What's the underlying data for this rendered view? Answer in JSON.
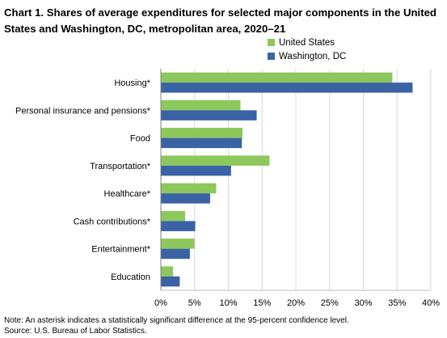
{
  "chart_data": {
    "type": "bar",
    "orientation": "horizontal",
    "title": "Chart 1. Shares of average expenditures for selected major components in the United States and Washington, DC, metropolitan area, 2020–21",
    "categories": [
      "Housing*",
      "Personal insurance and pensions*",
      "Food",
      "Transportation*",
      "Healthcare*",
      "Cash contributions*",
      "Entertainment*",
      "Education"
    ],
    "series": [
      {
        "name": "United States",
        "color": "#8dc85c",
        "values": [
          34.3,
          11.8,
          12.1,
          16.1,
          8.2,
          3.6,
          5.0,
          1.8
        ]
      },
      {
        "name": "Washington, DC",
        "color": "#3a63a5",
        "values": [
          37.3,
          14.2,
          12.0,
          10.4,
          7.3,
          5.1,
          4.3,
          2.8
        ]
      }
    ],
    "xlim": [
      0,
      40
    ],
    "xticks": [
      "0%",
      "5%",
      "10%",
      "15%",
      "20%",
      "25%",
      "30%",
      "35%",
      "40%"
    ],
    "xlabel": "",
    "ylabel": "",
    "grid": "vertical",
    "legend_position": "top-right"
  },
  "notes": {
    "note": "Note: An asterisk indicates a statistically significant difference at the 95-percent confidence level.",
    "source": "Source: U.S. Bureau of Labor Statistics."
  }
}
